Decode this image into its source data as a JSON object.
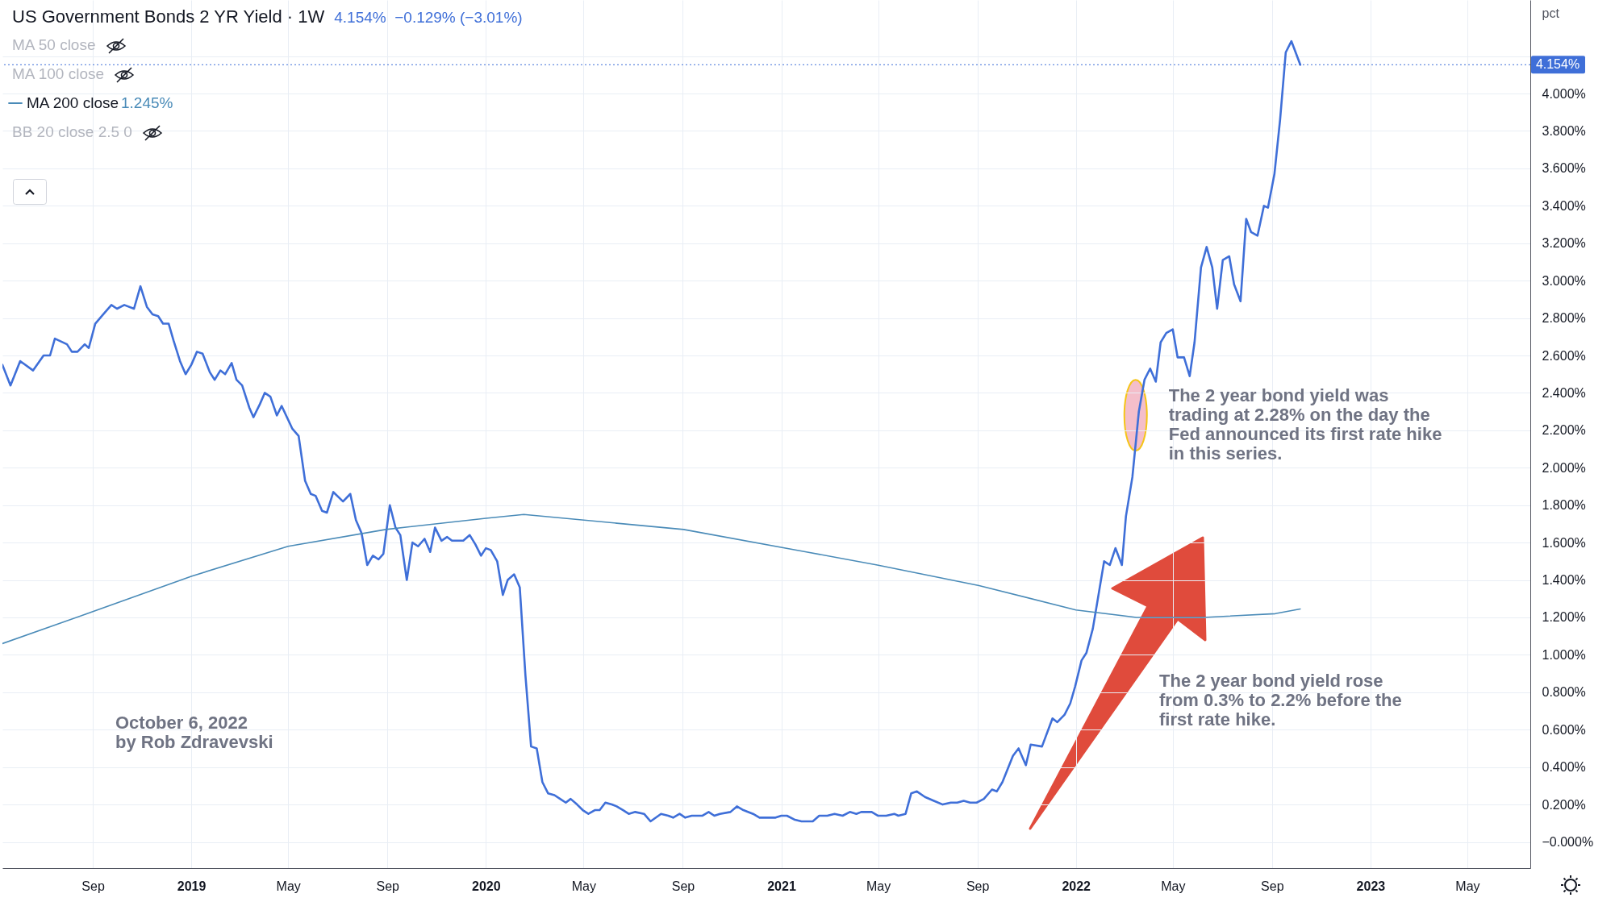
{
  "chart_data": {
    "type": "line",
    "title": "US Government Bonds 2 YR Yield · 1W",
    "subtitle": "4.154%  −0.129% (−3.01%)",
    "ylabel": "pct",
    "xlim": [
      "2018-05-12",
      "2023-07-18"
    ],
    "ylim": [
      -0.14,
      4.5
    ],
    "xticks": [
      {
        "value": "2018-09-01",
        "label": "Sep"
      },
      {
        "value": "2019-01-01",
        "label": "2019"
      },
      {
        "value": "2019-05-01",
        "label": "May"
      },
      {
        "value": "2019-09-01",
        "label": "Sep"
      },
      {
        "value": "2020-01-01",
        "label": "2020"
      },
      {
        "value": "2020-05-01",
        "label": "May"
      },
      {
        "value": "2020-09-01",
        "label": "Sep"
      },
      {
        "value": "2021-01-01",
        "label": "2021"
      },
      {
        "value": "2021-05-01",
        "label": "May"
      },
      {
        "value": "2021-09-01",
        "label": "Sep"
      },
      {
        "value": "2022-01-01",
        "label": "2022"
      },
      {
        "value": "2022-05-01",
        "label": "May"
      },
      {
        "value": "2022-09-01",
        "label": "Sep"
      },
      {
        "value": "2023-01-01",
        "label": "2023"
      },
      {
        "value": "2023-05-01",
        "label": "May"
      }
    ],
    "yticks": [
      {
        "value": 0,
        "label": "−0.000%"
      },
      {
        "value": 0.2,
        "label": "0.200%"
      },
      {
        "value": 0.4,
        "label": "0.400%"
      },
      {
        "value": 0.6,
        "label": "0.600%"
      },
      {
        "value": 0.8,
        "label": "0.800%"
      },
      {
        "value": 1,
        "label": "1.000%"
      },
      {
        "value": 1.2,
        "label": "1.200%"
      },
      {
        "value": 1.4,
        "label": "1.400%"
      },
      {
        "value": 1.6,
        "label": "1.600%"
      },
      {
        "value": 1.8,
        "label": "1.800%"
      },
      {
        "value": 2,
        "label": "2.000%"
      },
      {
        "value": 2.2,
        "label": "2.200%"
      },
      {
        "value": 2.4,
        "label": "2.400%"
      },
      {
        "value": 2.6,
        "label": "2.600%"
      },
      {
        "value": 2.8,
        "label": "2.800%"
      },
      {
        "value": 3,
        "label": "3.000%"
      },
      {
        "value": 3.2,
        "label": "3.200%"
      },
      {
        "value": 3.4,
        "label": "3.400%"
      },
      {
        "value": 3.6,
        "label": "3.600%"
      },
      {
        "value": 3.8,
        "label": "3.800%"
      },
      {
        "value": 4,
        "label": "4.000%"
      },
      {
        "value": 4.2,
        "label": null
      }
    ],
    "grid": true,
    "legend": "top left",
    "line_style": "solid",
    "series": [
      {
        "color": "#3f6fd8",
        "x": [
          "2018-05-12",
          "2018-05-22",
          "2018-06-03",
          "2018-06-19",
          "2018-07-02",
          "2018-07-10",
          "2018-07-16",
          "2018-07-31",
          "2018-08-06",
          "2018-08-13",
          "2018-08-22",
          "2018-08-27",
          "2018-09-04",
          "2018-09-14",
          "2018-09-24",
          "2018-10-01",
          "2018-10-10",
          "2018-10-22",
          "2018-10-30",
          "2018-11-07",
          "2018-11-14",
          "2018-11-21",
          "2018-11-27",
          "2018-12-04",
          "2018-12-10",
          "2018-12-18",
          "2018-12-25",
          "2019-01-01",
          "2019-01-08",
          "2019-01-15",
          "2019-01-24",
          "2019-01-30",
          "2019-02-06",
          "2019-02-12",
          "2019-02-20",
          "2019-02-26",
          "2019-03-05",
          "2019-03-14",
          "2019-03-19",
          "2019-03-27",
          "2019-04-02",
          "2019-04-09",
          "2019-04-17",
          "2019-04-23",
          "2019-05-06",
          "2019-05-14",
          "2019-05-22",
          "2019-05-29",
          "2019-06-04",
          "2019-06-12",
          "2019-06-18",
          "2019-06-26",
          "2019-07-08",
          "2019-07-17",
          "2019-07-24",
          "2019-07-31",
          "2019-08-07",
          "2019-08-14",
          "2019-08-21",
          "2019-08-27",
          "2019-09-04",
          "2019-09-11",
          "2019-09-17",
          "2019-09-25",
          "2019-10-02",
          "2019-10-09",
          "2019-10-17",
          "2019-10-24",
          "2019-10-30",
          "2019-11-07",
          "2019-11-14",
          "2019-11-20",
          "2019-11-28",
          "2019-12-04",
          "2019-12-12",
          "2019-12-19",
          "2019-12-26",
          "2020-01-01",
          "2020-01-07",
          "2020-01-15",
          "2020-01-22",
          "2020-01-28",
          "2020-02-05",
          "2020-02-12",
          "2020-02-19",
          "2020-02-26",
          "2020-03-04",
          "2020-03-11",
          "2020-03-18",
          "2020-03-26",
          "2020-04-02",
          "2020-04-09",
          "2020-04-15",
          "2020-04-23",
          "2020-04-30",
          "2020-05-07",
          "2020-05-15",
          "2020-05-21",
          "2020-05-28",
          "2020-06-05",
          "2020-06-11",
          "2020-06-19",
          "2020-06-26",
          "2020-07-04",
          "2020-07-15",
          "2020-07-23",
          "2020-08-05",
          "2020-08-14",
          "2020-08-20",
          "2020-08-28",
          "2020-09-04",
          "2020-09-12",
          "2020-09-18",
          "2020-09-25",
          "2020-10-03",
          "2020-10-10",
          "2020-10-17",
          "2020-10-30",
          "2020-11-07",
          "2020-11-15",
          "2020-11-27",
          "2020-12-05",
          "2020-12-25",
          "2021-01-01",
          "2021-01-08",
          "2021-01-17",
          "2021-01-26",
          "2021-02-09",
          "2021-02-17",
          "2021-02-27",
          "2021-03-08",
          "2021-03-18",
          "2021-03-27",
          "2021-04-04",
          "2021-04-10",
          "2021-04-23",
          "2021-05-01",
          "2021-05-11",
          "2021-05-21",
          "2021-05-26",
          "2021-06-04",
          "2021-06-11",
          "2021-06-18",
          "2021-06-28",
          "2021-07-09",
          "2021-07-20",
          "2021-07-30",
          "2021-08-07",
          "2021-08-15",
          "2021-08-23",
          "2021-08-31",
          "2021-09-09",
          "2021-09-19",
          "2021-09-25",
          "2021-10-02",
          "2021-10-15",
          "2021-10-22",
          "2021-10-31",
          "2021-11-06",
          "2021-11-20",
          "2021-12-03",
          "2021-12-09",
          "2021-12-18",
          "2021-12-25",
          "2021-12-31",
          "2022-01-08",
          "2022-01-14",
          "2022-01-22",
          "2022-01-29",
          "2022-02-05",
          "2022-02-12",
          "2022-02-19",
          "2022-02-27",
          "2022-03-04",
          "2022-03-12",
          "2022-03-20",
          "2022-03-27",
          "2022-04-03",
          "2022-04-10",
          "2022-04-16",
          "2022-04-23",
          "2022-05-01",
          "2022-05-07",
          "2022-05-15",
          "2022-05-22",
          "2022-05-28",
          "2022-06-05",
          "2022-06-12",
          "2022-06-19",
          "2022-06-25",
          "2022-07-02",
          "2022-07-10",
          "2022-07-16",
          "2022-07-24",
          "2022-07-31",
          "2022-08-06",
          "2022-08-14",
          "2022-08-22",
          "2022-08-27",
          "2022-09-04",
          "2022-09-11",
          "2022-09-18",
          "2022-09-25",
          "2022-10-06"
        ],
        "values": [
          2.55,
          2.44,
          2.57,
          2.52,
          2.6,
          2.6,
          2.69,
          2.66,
          2.62,
          2.62,
          2.66,
          2.64,
          2.77,
          2.82,
          2.87,
          2.85,
          2.87,
          2.85,
          2.97,
          2.86,
          2.82,
          2.81,
          2.77,
          2.77,
          2.68,
          2.57,
          2.5,
          2.55,
          2.62,
          2.61,
          2.51,
          2.47,
          2.52,
          2.5,
          2.56,
          2.47,
          2.44,
          2.32,
          2.27,
          2.34,
          2.4,
          2.38,
          2.28,
          2.33,
          2.21,
          2.17,
          1.93,
          1.86,
          1.85,
          1.77,
          1.76,
          1.87,
          1.82,
          1.86,
          1.72,
          1.65,
          1.48,
          1.53,
          1.51,
          1.54,
          1.8,
          1.68,
          1.64,
          1.4,
          1.6,
          1.58,
          1.62,
          1.55,
          1.68,
          1.61,
          1.63,
          1.61,
          1.61,
          1.61,
          1.64,
          1.59,
          1.53,
          1.57,
          1.56,
          1.5,
          1.32,
          1.4,
          1.43,
          1.36,
          0.89,
          0.51,
          0.5,
          0.32,
          0.26,
          0.25,
          0.23,
          0.21,
          0.23,
          0.2,
          0.17,
          0.15,
          0.17,
          0.17,
          0.21,
          0.2,
          0.19,
          0.17,
          0.15,
          0.16,
          0.15,
          0.11,
          0.15,
          0.14,
          0.13,
          0.15,
          0.13,
          0.14,
          0.14,
          0.14,
          0.16,
          0.14,
          0.15,
          0.16,
          0.19,
          0.17,
          0.15,
          0.13,
          0.13,
          0.14,
          0.14,
          0.12,
          0.11,
          0.11,
          0.14,
          0.14,
          0.15,
          0.14,
          0.16,
          0.15,
          0.16,
          0.16,
          0.14,
          0.14,
          0.15,
          0.14,
          0.15,
          0.26,
          0.27,
          0.24,
          0.22,
          0.2,
          0.21,
          0.21,
          0.22,
          0.21,
          0.21,
          0.23,
          0.28,
          0.27,
          0.32,
          0.46,
          0.5,
          0.41,
          0.52,
          0.51,
          0.66,
          0.64,
          0.68,
          0.74,
          0.83,
          0.97,
          1.01,
          1.14,
          1.32,
          1.5,
          1.48,
          1.57,
          1.48,
          1.74,
          1.95,
          2.3,
          2.47,
          2.53,
          2.46,
          2.67,
          2.72,
          2.74,
          2.59,
          2.59,
          2.49,
          2.67,
          3.07,
          3.18,
          3.07,
          2.85,
          3.11,
          3.13,
          2.98,
          2.89,
          3.33,
          3.26,
          3.24,
          3.4,
          3.39,
          3.57,
          3.86,
          4.22,
          4.28,
          4.154
        ]
      },
      {
        "name": "MA 200 close",
        "color": "#4a8bb8",
        "x": [
          "2018-05-12",
          "2018-08-25",
          "2019-01-01",
          "2019-05-01",
          "2019-08-30",
          "2020-01-01",
          "2020-02-17",
          "2020-09-02",
          "2021-02-01",
          "2021-04-30",
          "2021-09-03",
          "2022-01-01",
          "2022-03-17",
          "2022-06-08",
          "2022-09-05",
          "2022-10-06"
        ],
        "values": [
          1.06,
          1.22,
          1.42,
          1.58,
          1.67,
          1.73,
          1.75,
          1.67,
          1.55,
          1.48,
          1.37,
          1.24,
          1.2,
          1.2,
          1.22,
          1.245
        ]
      }
    ],
    "ref_lines": [
      {
        "axis": "y",
        "value": 4.154,
        "label": "4.154%",
        "color": "#3f6fd8",
        "line_style": "dotted"
      }
    ],
    "annotations": [
      "MA 50 close",
      "MA 100 close",
      "1.245%",
      "BB 20 close 2.5 0",
      {
        "text": "The 2 year bond yield was trading at 2.28% on the day the Fed announced its first rate hike in this series.",
        "x": "2022-03-16",
        "y": 2.28
      },
      "The 2 year bond yield rose from 0.3% to 2.2% before the first rate hike.",
      "October 6, 2022\nby Rob Zdravevski"
    ]
  }
}
